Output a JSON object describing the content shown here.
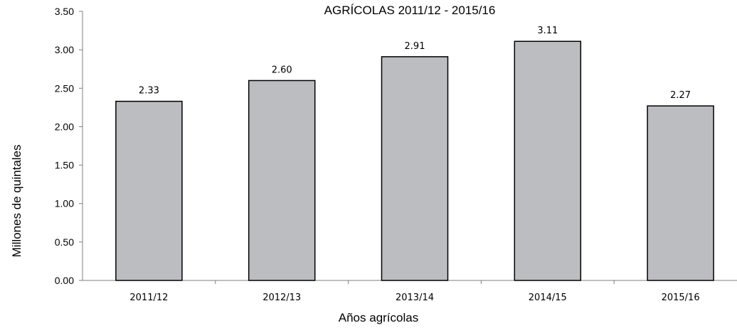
{
  "chart_data": {
    "type": "bar",
    "title": "AGRÍCOLAS 2011/12 - 2015/16",
    "xlabel": "Años agrícolas",
    "ylabel": "Millones de quintales",
    "categories": [
      "2011/12",
      "2012/13",
      "2013/14",
      "2014/15",
      "2015/16"
    ],
    "values": [
      2.33,
      2.6,
      2.91,
      3.11,
      2.27
    ],
    "data_labels": [
      "2.33",
      "2.60",
      "2.91",
      "3.11",
      "2.27"
    ],
    "ylim": [
      0,
      3.5
    ],
    "yticks": [
      "0.00",
      "0.50",
      "1.00",
      "1.50",
      "2.00",
      "2.50",
      "3.00",
      "3.50"
    ],
    "grid": false,
    "legend": "none",
    "bar_color": "#bcbdc1"
  }
}
